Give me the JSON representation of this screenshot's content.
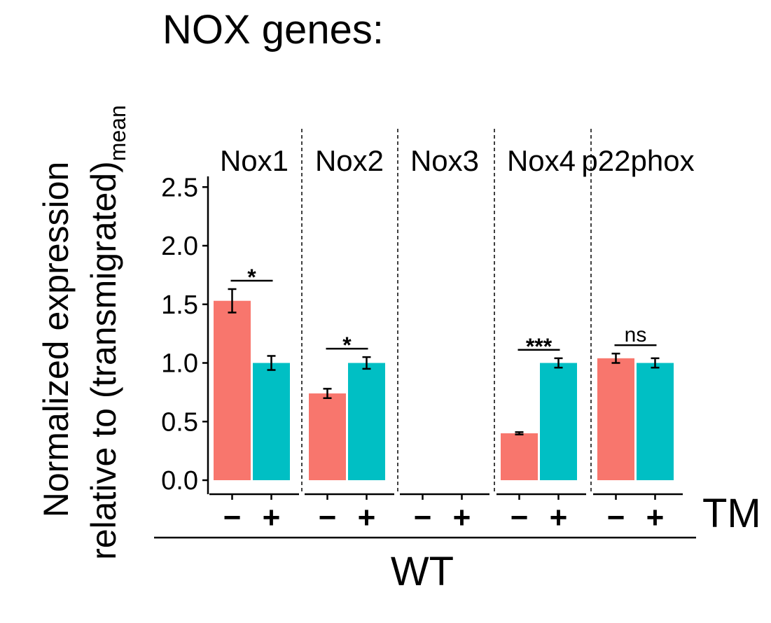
{
  "chart_data": {
    "type": "bar",
    "title": "NOX genes:",
    "ylabel": "Normalized expression relative to (transmigrated)mean",
    "ylabel_line1": "Normalized expression",
    "ylabel_line2_main": "relative to (transmigrated)",
    "ylabel_line2_sub": "mean",
    "ylim": [
      0,
      2.6
    ],
    "yticks": [
      "0.0",
      "0.5",
      "1.0",
      "1.5",
      "2.0",
      "2.5"
    ],
    "ytick_values": [
      0,
      0.5,
      1.0,
      1.5,
      2.0,
      2.5
    ],
    "x_factor_label": "TM",
    "group_label": "WT",
    "levels": [
      "−",
      "+"
    ],
    "colors": {
      "minus": "#F8766D",
      "plus": "#00BFC4"
    },
    "grid": false,
    "legend": "none",
    "panels": [
      {
        "name": "Nox1",
        "values": [
          1.53,
          1.0
        ],
        "errors": [
          0.1,
          0.06
        ],
        "significance": "*"
      },
      {
        "name": "Nox2",
        "values": [
          0.74,
          1.0
        ],
        "errors": [
          0.04,
          0.05
        ],
        "significance": "*"
      },
      {
        "name": "Nox3",
        "values": [
          null,
          null
        ],
        "errors": [
          null,
          null
        ],
        "significance": ""
      },
      {
        "name": "Nox4",
        "values": [
          0.4,
          1.0
        ],
        "errors": [
          0.01,
          0.04
        ],
        "significance": "***"
      },
      {
        "name": "p22phox",
        "values": [
          1.04,
          1.0
        ],
        "errors": [
          0.04,
          0.04
        ],
        "significance": "ns"
      }
    ]
  }
}
